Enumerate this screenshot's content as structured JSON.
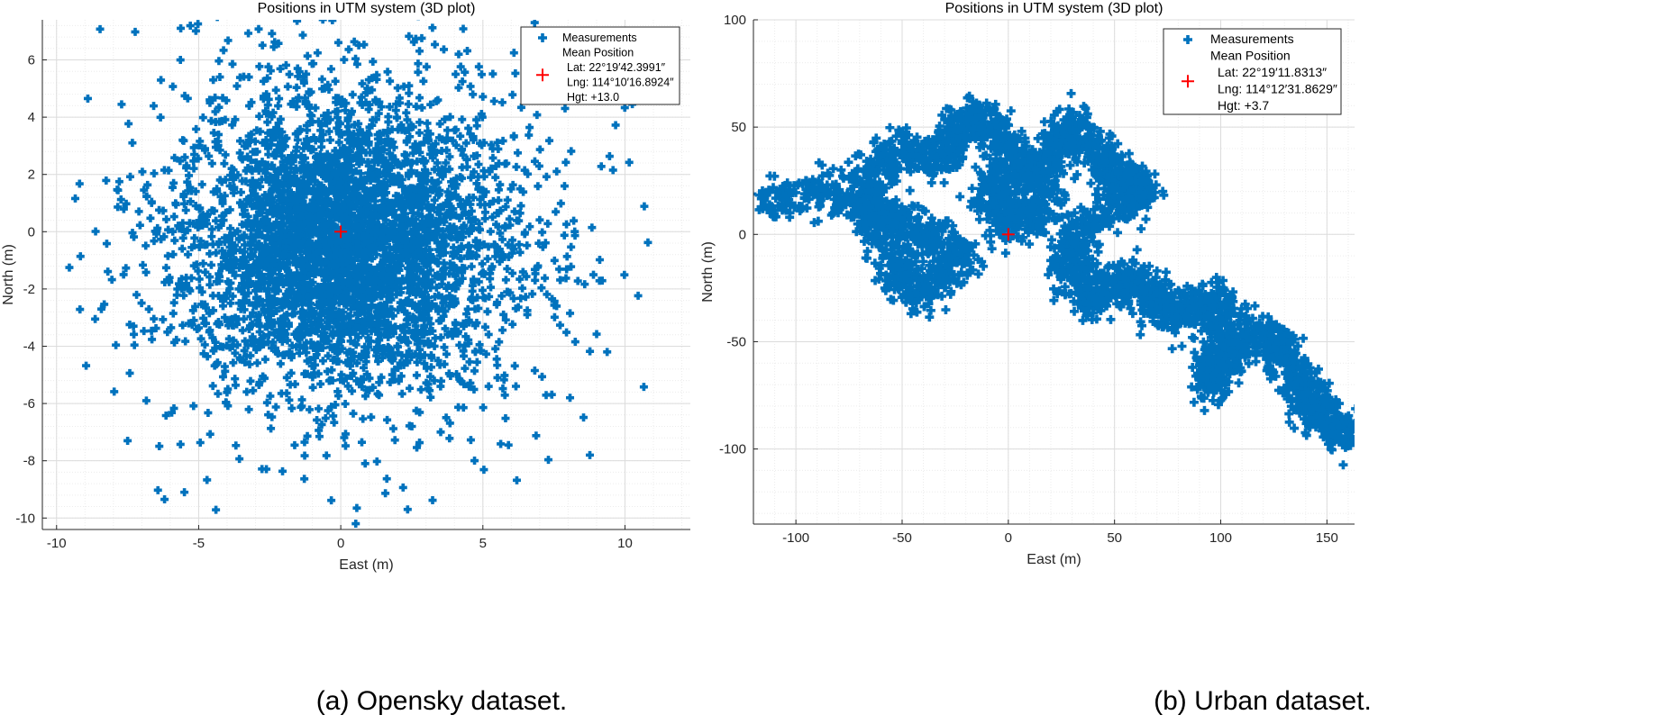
{
  "captions": [
    "(a) Opensky dataset.",
    "(b) Urban dataset."
  ],
  "chart_data": [
    {
      "type": "scatter",
      "title": "Positions in UTM system (3D plot)",
      "xlabel": "East (m)",
      "ylabel": "North (m)",
      "xlim": [
        -10.5,
        12.3
      ],
      "ylim": [
        -10.4,
        7.4
      ],
      "xticks": [
        -10,
        -5,
        0,
        5,
        10
      ],
      "yticks": [
        -10,
        -8,
        -6,
        -4,
        -2,
        0,
        2,
        4,
        6
      ],
      "grid": true,
      "legend_position": "top-right",
      "series_color": "#0072BD",
      "mean_color": "#FF0000",
      "series": [
        {
          "name": "Measurements",
          "marker": "plus",
          "shape": "dense cloud centred near (0,0), spanning approx East -10.5..12.2 m, North -10.3..7.3 m"
        },
        {
          "name": "Mean Position",
          "marker": "plus",
          "x": [
            0
          ],
          "y": [
            0
          ]
        }
      ],
      "legend": [
        "Measurements",
        "Mean Position",
        "Lat: 22°19′42.3991″",
        "Lng: 114°10′16.8924″",
        "Hgt: +13.0"
      ]
    },
    {
      "type": "scatter",
      "title": "Positions in UTM system (3D plot)",
      "xlabel": "East (m)",
      "ylabel": "North (m)",
      "xlim": [
        -120,
        163
      ],
      "ylim": [
        -135,
        100
      ],
      "xticks": [
        -100,
        -50,
        0,
        50,
        100,
        150
      ],
      "yticks": [
        -100,
        -50,
        0,
        50,
        100
      ],
      "grid": true,
      "legend_position": "top-right",
      "series_color": "#0072BD",
      "mean_color": "#FF0000",
      "series": [
        {
          "name": "Measurements",
          "marker": "plus",
          "shape": "wandering trajectory from upper-left (-120, 14) to lower-right (162, -94)"
        },
        {
          "name": "Mean Position",
          "marker": "plus",
          "x": [
            0
          ],
          "y": [
            0
          ]
        }
      ],
      "legend": [
        "Measurements",
        "Mean Position",
        "Lat: 22°19′11.8313″",
        "Lng: 114°12′31.8629″",
        "Hgt: +3.7"
      ]
    }
  ]
}
